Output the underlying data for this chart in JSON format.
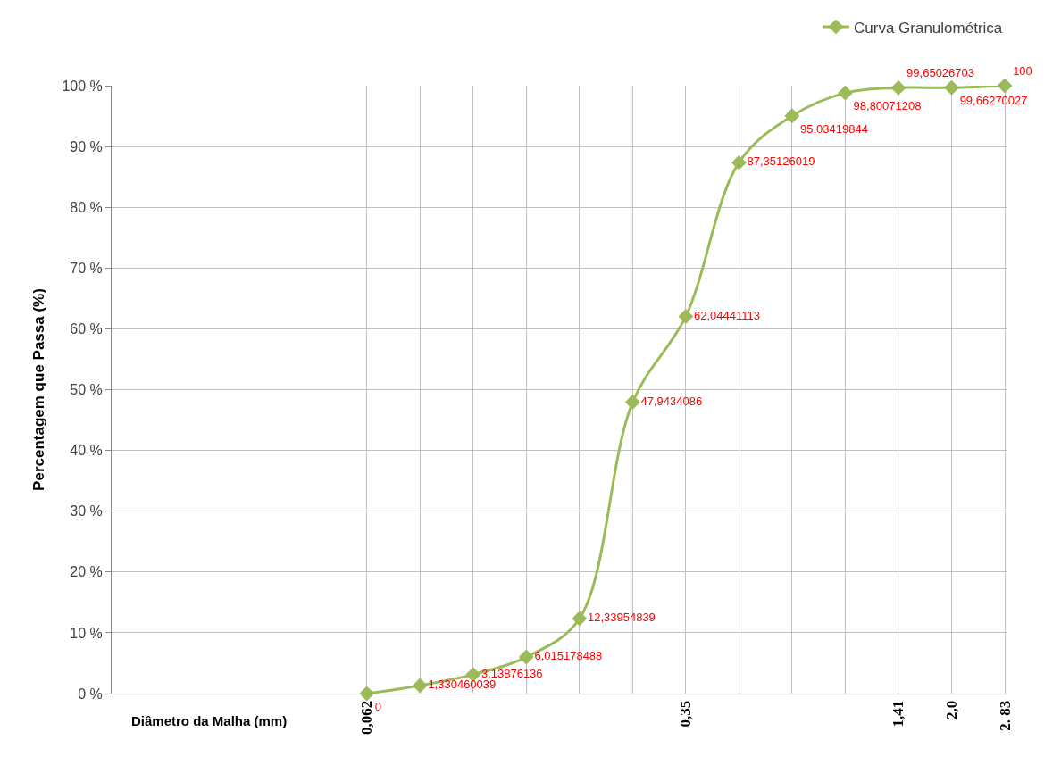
{
  "chart_data": {
    "type": "line",
    "xlabel": "Diâmetro da Malha (mm)",
    "ylabel": "Percentagem que Passa (%)",
    "categories": [
      "0,062",
      null,
      null,
      null,
      null,
      null,
      "0,35",
      null,
      null,
      null,
      "1,41",
      "2,0",
      "2. 83"
    ],
    "series": [
      {
        "name": "Curva Granulométrica",
        "color": "#9bbb59",
        "values": [
          0,
          1.330460039,
          3.13876136,
          6.015178488,
          12.33954839,
          47.9434086,
          62.04441113,
          87.35126019,
          95.03419844,
          98.80071208,
          99.65026703,
          99.66270027,
          100
        ],
        "value_labels": [
          "0",
          "1,330460039",
          "3,13876136",
          "6,015178488",
          "12,33954839",
          "47,9434086",
          "62,04441113",
          "87,35126019",
          "95,03419844",
          "98,80071208",
          "99,65026703",
          "99,66270027",
          "100"
        ]
      }
    ],
    "ylim": [
      0,
      100
    ],
    "yticks": [
      {
        "value": 0,
        "label": "0 %"
      },
      {
        "value": 10,
        "label": "10 %"
      },
      {
        "value": 20,
        "label": "20 %"
      },
      {
        "value": 30,
        "label": "30 %"
      },
      {
        "value": 40,
        "label": "40 %"
      },
      {
        "value": 50,
        "label": "50 %"
      },
      {
        "value": 60,
        "label": "60 %"
      },
      {
        "value": 70,
        "label": "70 %"
      },
      {
        "value": 80,
        "label": "80 %"
      },
      {
        "value": 90,
        "label": "90 %"
      },
      {
        "value": 100,
        "label": "100 %"
      }
    ],
    "grid": true,
    "legend": "top right",
    "marker": "diamond",
    "line_style": "solid"
  }
}
